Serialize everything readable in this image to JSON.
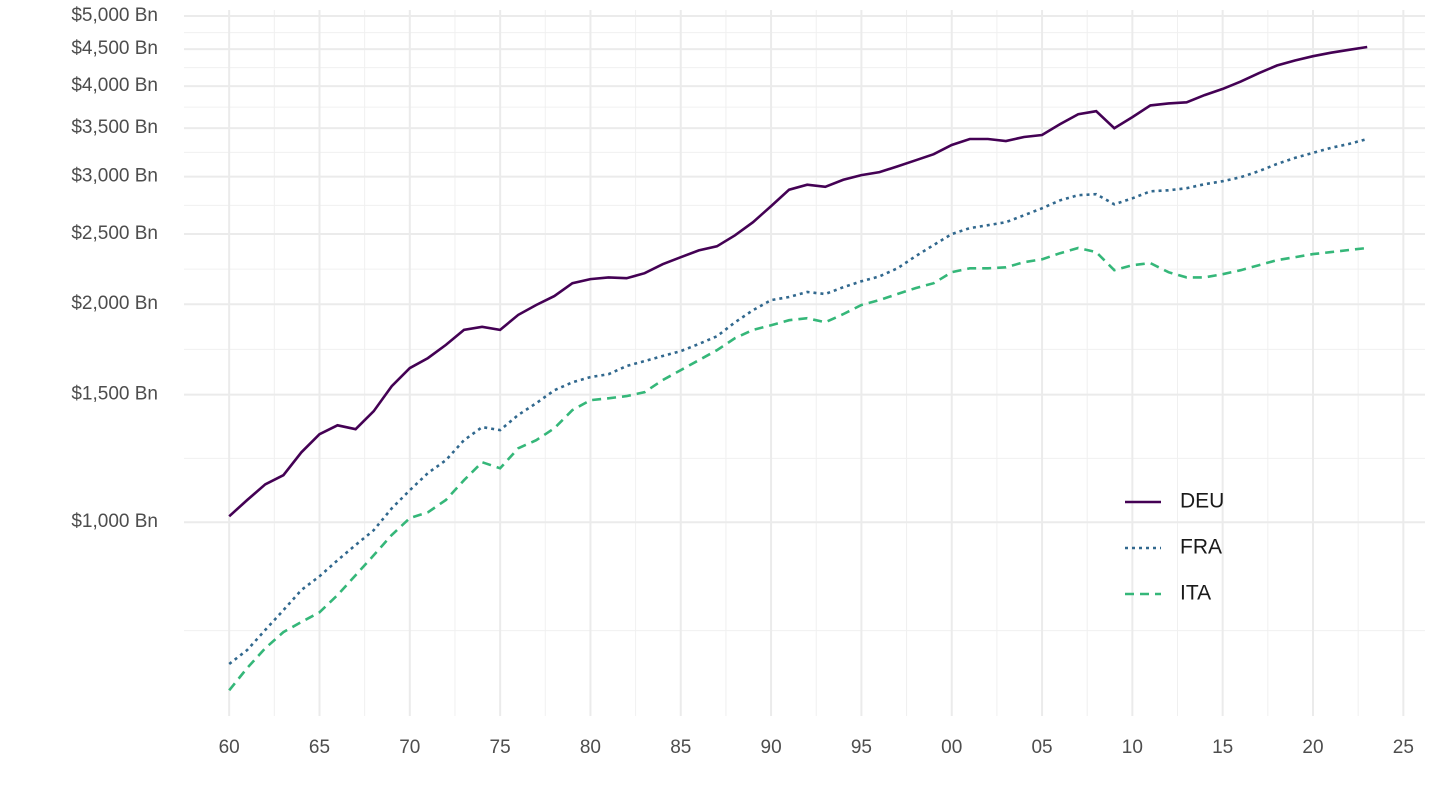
{
  "chart_data": {
    "type": "line",
    "log_y": true,
    "grid": true,
    "legend": "bottom right",
    "x": [
      1960,
      1961,
      1962,
      1963,
      1964,
      1965,
      1966,
      1967,
      1968,
      1969,
      1970,
      1971,
      1972,
      1973,
      1974,
      1975,
      1976,
      1977,
      1978,
      1979,
      1980,
      1981,
      1982,
      1983,
      1984,
      1985,
      1986,
      1987,
      1988,
      1989,
      1990,
      1991,
      1992,
      1993,
      1994,
      1995,
      1996,
      1997,
      1998,
      1999,
      2000,
      2001,
      2002,
      2003,
      2004,
      2005,
      2006,
      2007,
      2008,
      2009,
      2010,
      2011,
      2012,
      2013,
      2014,
      2015,
      2016,
      2017,
      2018,
      2019,
      2020,
      2021,
      2022,
      2023
    ],
    "series": [
      {
        "name": "DEU",
        "color": "#440154",
        "dash": "solid",
        "values": [
          1019,
          1073,
          1128,
          1161,
          1249,
          1323,
          1361,
          1344,
          1423,
          1541,
          1632,
          1685,
          1757,
          1843,
          1861,
          1843,
          1933,
          1995,
          2052,
          2138,
          2166,
          2178,
          2172,
          2207,
          2271,
          2322,
          2373,
          2404,
          2490,
          2596,
          2732,
          2878,
          2924,
          2905,
          2970,
          3015,
          3044,
          3100,
          3160,
          3222,
          3318,
          3382,
          3382,
          3360,
          3403,
          3425,
          3546,
          3659,
          3694,
          3500,
          3625,
          3763,
          3787,
          3800,
          3888,
          3966,
          4059,
          4168,
          4272,
          4340,
          4400,
          4450,
          4490,
          4530
        ]
      },
      {
        "name": "FRA",
        "color": "#31688e",
        "dash": "dotted",
        "values": [
          637,
          666,
          710,
          756,
          806,
          842,
          886,
          930,
          975,
          1045,
          1107,
          1169,
          1218,
          1298,
          1353,
          1340,
          1406,
          1460,
          1521,
          1560,
          1586,
          1601,
          1643,
          1669,
          1696,
          1723,
          1762,
          1806,
          1888,
          1962,
          2026,
          2046,
          2079,
          2066,
          2111,
          2151,
          2185,
          2242,
          2330,
          2414,
          2499,
          2547,
          2571,
          2596,
          2653,
          2713,
          2783,
          2828,
          2837,
          2748,
          2801,
          2864,
          2873,
          2892,
          2929,
          2957,
          2995,
          3053,
          3123,
          3184,
          3235,
          3288,
          3329,
          3382
        ]
      },
      {
        "name": "ITA",
        "color": "#35b779",
        "dash": "dashed",
        "values": [
          586,
          629,
          670,
          705,
          728,
          751,
          793,
          845,
          900,
          960,
          1013,
          1032,
          1073,
          1143,
          1210,
          1187,
          1265,
          1298,
          1348,
          1428,
          1474,
          1483,
          1493,
          1512,
          1571,
          1622,
          1674,
          1728,
          1795,
          1843,
          1871,
          1901,
          1913,
          1888,
          1938,
          1995,
          2026,
          2066,
          2105,
          2138,
          2214,
          2242,
          2242,
          2249,
          2286,
          2307,
          2352,
          2391,
          2360,
          2228,
          2264,
          2279,
          2214,
          2178,
          2178,
          2200,
          2228,
          2264,
          2300,
          2322,
          2345,
          2360,
          2376,
          2391
        ]
      }
    ],
    "xlim": [
      1957.5,
      2026.2
    ],
    "xticks": [
      {
        "value": 1960,
        "label": "60"
      },
      {
        "value": 1965,
        "label": "65"
      },
      {
        "value": 1970,
        "label": "70"
      },
      {
        "value": 1975,
        "label": "75"
      },
      {
        "value": 1980,
        "label": "80"
      },
      {
        "value": 1985,
        "label": "85"
      },
      {
        "value": 1990,
        "label": "90"
      },
      {
        "value": 1995,
        "label": "95"
      },
      {
        "value": 2000,
        "label": "00"
      },
      {
        "value": 2005,
        "label": "05"
      },
      {
        "value": 2010,
        "label": "10"
      },
      {
        "value": 2015,
        "label": "15"
      },
      {
        "value": 2020,
        "label": "20"
      },
      {
        "value": 2025,
        "label": "25"
      }
    ],
    "ylim": [
      540,
      5000
    ],
    "yticks": [
      {
        "value": 1000,
        "label": "$1,000 Bn"
      },
      {
        "value": 1500,
        "label": "$1,500 Bn"
      },
      {
        "value": 2000,
        "label": "$2,000 Bn"
      },
      {
        "value": 2500,
        "label": "$2,500 Bn"
      },
      {
        "value": 3000,
        "label": "$3,000 Bn"
      },
      {
        "value": 3500,
        "label": "$3,500 Bn"
      },
      {
        "value": 4000,
        "label": "$4,000 Bn"
      },
      {
        "value": 4500,
        "label": "$4,500 Bn"
      },
      {
        "value": 5000,
        "label": "$5,000 Bn"
      }
    ]
  }
}
